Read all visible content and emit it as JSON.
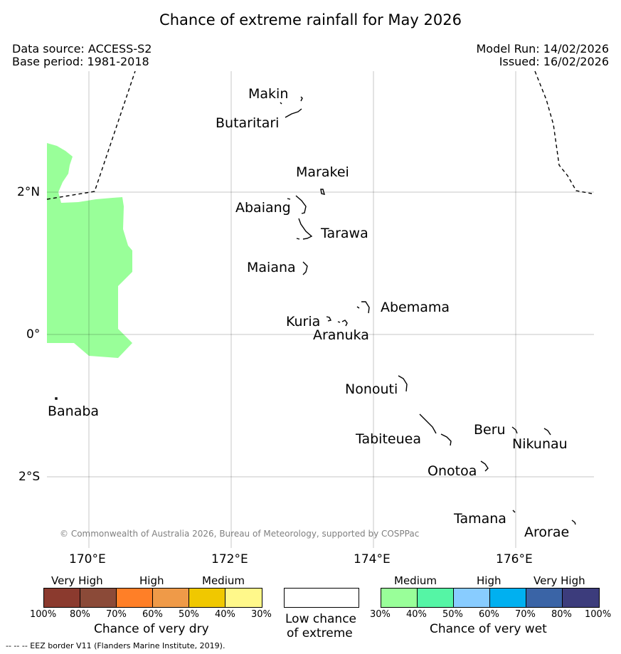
{
  "title": "Chance of extreme rainfall for May 2026",
  "meta": {
    "data_source": "Data source: ACCESS-S2",
    "base_period": "Base period: 1981-2018",
    "model_run": "Model Run: 14/02/2026",
    "issued": "Issued: 16/02/2026"
  },
  "islands": {
    "makin": "Makin",
    "butaritari": "Butaritari",
    "marakei": "Marakei",
    "abaiang": "Abaiang",
    "tarawa": "Tarawa",
    "maiana": "Maiana",
    "abemama": "Abemama",
    "kuria": "Kuria",
    "aranuka": "Aranuka",
    "banaba": "Banaba",
    "nonouti": "Nonouti",
    "tabiteuea": "Tabiteuea",
    "beru": "Beru",
    "nikunau": "Nikunau",
    "onotoa": "Onotoa",
    "tamana": "Tamana",
    "arorae": "Arorae"
  },
  "axes": {
    "lat": [
      "2°N",
      "0°",
      "2°S"
    ],
    "lon": [
      "170°E",
      "172°E",
      "174°E",
      "176°E"
    ]
  },
  "credit": "© Commonwealth of Australia 2026, Bureau of Meteorology, supported by COSPPac",
  "legend": {
    "dry": {
      "head_very_high": "Very High",
      "head_high": "High",
      "head_medium": "Medium",
      "ticks": [
        "100%",
        "80%",
        "70%",
        "60%",
        "50%",
        "40%",
        "30%"
      ],
      "colors": [
        "#8b3a2e",
        "#8b4a38",
        "#ff7f27",
        "#ef9a48",
        "#f0c800",
        "#fff88a"
      ],
      "title": "Chance of very dry"
    },
    "low": {
      "line1": "Low chance",
      "line2": "of extreme",
      "color": "#ffffff"
    },
    "wet": {
      "head_medium": "Medium",
      "head_high": "High",
      "head_very_high": "Very High",
      "ticks": [
        "30%",
        "40%",
        "50%",
        "60%",
        "70%",
        "80%",
        "100%"
      ],
      "colors": [
        "#99ff99",
        "#55f5a5",
        "#88ccff",
        "#00b0f0",
        "#3a64a6",
        "#3c3c7c"
      ],
      "title": "Chance of very wet"
    }
  },
  "eez_note": "--  --  -- EEZ border V11 (Flanders Marine Institute, 2019)."
}
